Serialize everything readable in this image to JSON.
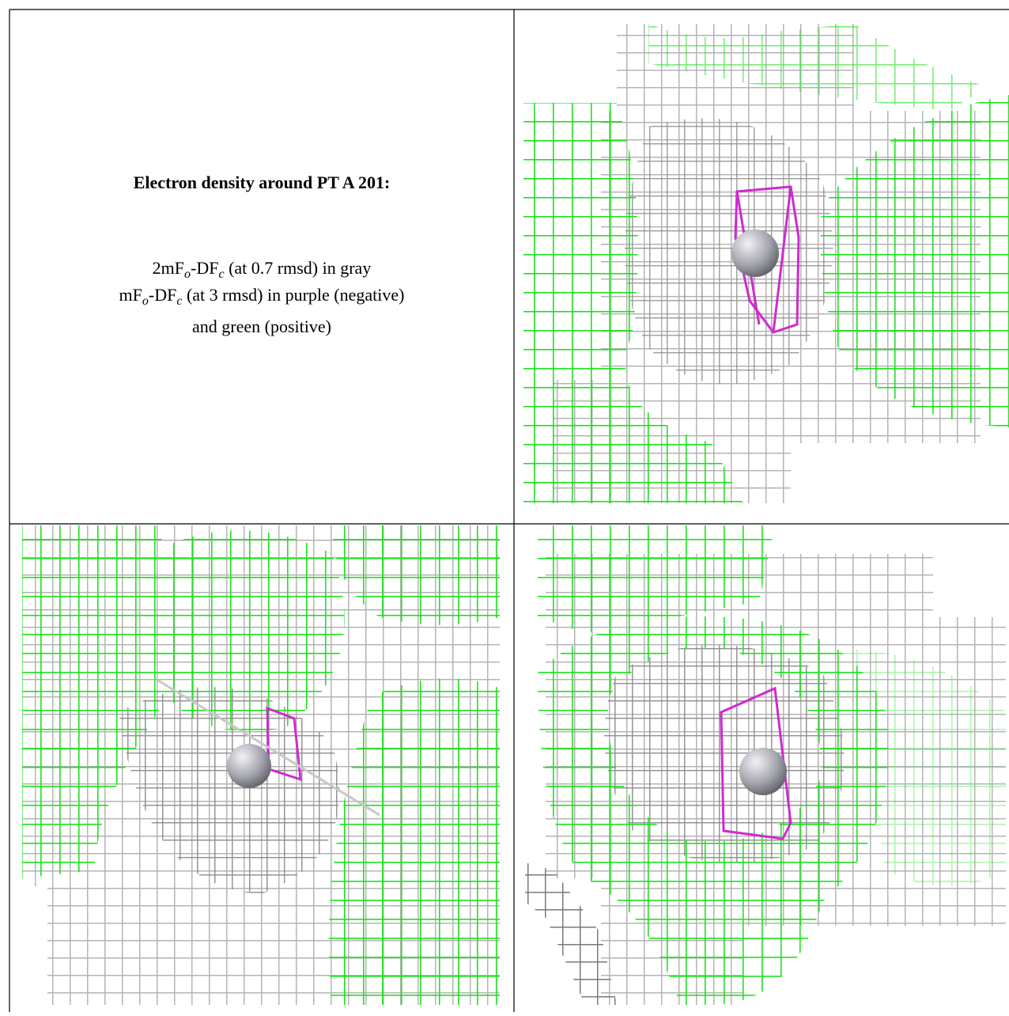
{
  "caption": {
    "title": "Electron density around PT A 201:",
    "lines": [
      [
        "2mF",
        "o",
        "-DF",
        "c",
        " (at 0.7 rmsd) in gray"
      ],
      [
        "mF",
        "o",
        "-DF",
        "c",
        " (at 3 rmsd) in purple (negative)"
      ],
      [
        "and green (positive)"
      ]
    ]
  }
}
